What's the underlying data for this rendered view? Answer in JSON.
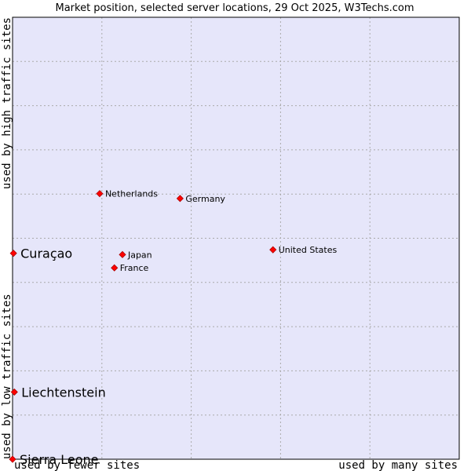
{
  "chart_data": {
    "type": "scatter",
    "title": "Market position, selected server locations, 29 Oct 2025, W3Techs.com",
    "xlabel_left": "used by fewer sites",
    "xlabel_right": "used by many sites",
    "ylabel_bottom": "used by low traffic sites",
    "ylabel_top": "used by high traffic sites",
    "xlim": [
      0,
      100
    ],
    "ylim": [
      0,
      100
    ],
    "grid": true,
    "colors": {
      "plot_background": "#e6e6fa",
      "grid": "#aaaaaa",
      "point": "#ff0000",
      "point_outline": "#aa0000"
    },
    "points": [
      {
        "label": "Netherlands",
        "x": 19.5,
        "y": 60.1,
        "size": "small"
      },
      {
        "label": "Germany",
        "x": 37.5,
        "y": 59.0,
        "size": "small"
      },
      {
        "label": "United States",
        "x": 58.3,
        "y": 47.4,
        "size": "small"
      },
      {
        "label": "Japan",
        "x": 24.6,
        "y": 46.3,
        "size": "small"
      },
      {
        "label": "France",
        "x": 22.8,
        "y": 43.3,
        "size": "small"
      },
      {
        "label": "Curaçao",
        "x": 0.2,
        "y": 46.6,
        "size": "large"
      },
      {
        "label": "Liechtenstein",
        "x": 0.4,
        "y": 15.2,
        "size": "large"
      },
      {
        "label": "Sierra Leone",
        "x": 0.0,
        "y": 0.0,
        "size": "large"
      }
    ]
  }
}
